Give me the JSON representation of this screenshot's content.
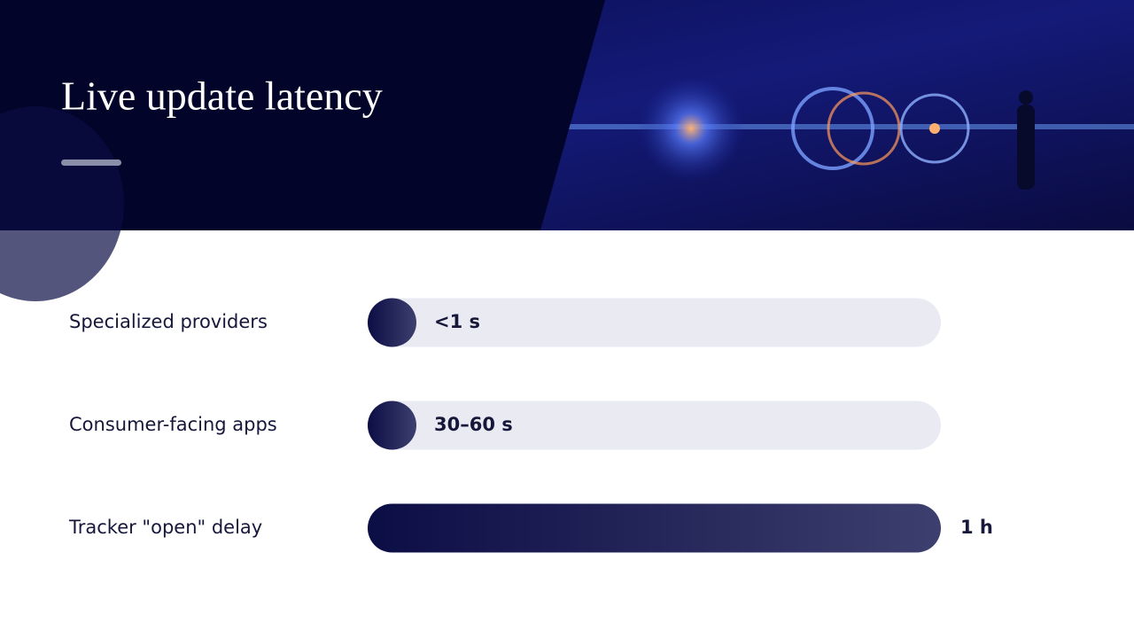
{
  "chart_data": {
    "type": "bar",
    "orientation": "horizontal",
    "title": "Live update latency",
    "categories": [
      "Specialized providers",
      "Consumer-facing apps",
      "Tracker \"open\" delay"
    ],
    "values": [
      0.5,
      45,
      3600
    ],
    "value_labels": [
      "<1 s",
      "30–60 s",
      "1 h"
    ],
    "xlim": [
      0,
      3600
    ],
    "color": [
      "#0b0d45",
      "#3d3f6e"
    ]
  }
}
